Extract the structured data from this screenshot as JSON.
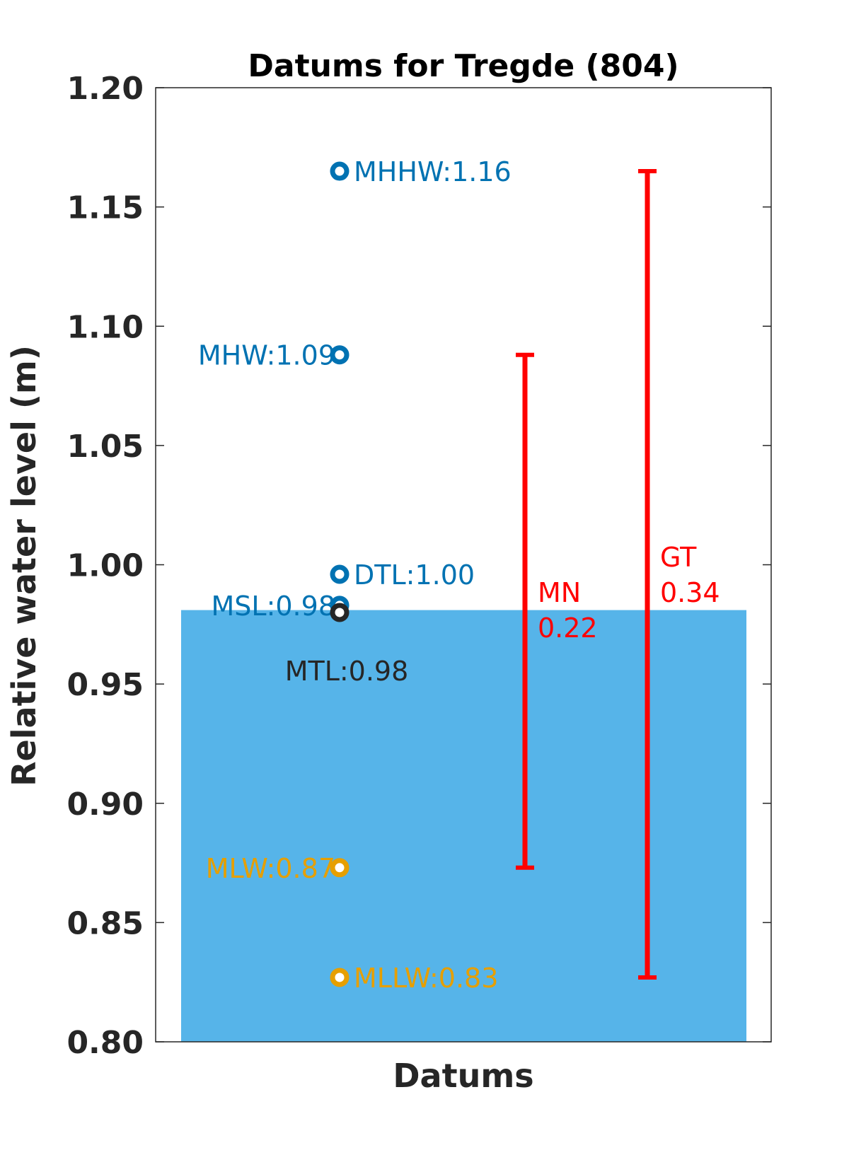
{
  "chart_data": {
    "type": "scatter",
    "title": "Datums for Tregde (804)",
    "xlabel": "Datums",
    "ylabel": "Relative water level (m)",
    "ylim": [
      0.8,
      1.2
    ],
    "yticks": [
      0.8,
      0.85,
      0.9,
      0.95,
      1.0,
      1.05,
      1.1,
      1.15,
      1.2
    ],
    "ytick_labels": [
      "0.80",
      "0.85",
      "0.90",
      "0.95",
      "1.00",
      "1.05",
      "1.10",
      "1.15",
      "1.20"
    ],
    "background_bar": {
      "value": 0.981,
      "color": "#56B4E9"
    },
    "points": [
      {
        "name": "MHHW",
        "label": "MHHW:1.16",
        "value": 1.165,
        "color": "#0072B2",
        "label_side": "right"
      },
      {
        "name": "MHW",
        "label": "MHW:1.09",
        "value": 1.088,
        "color": "#0072B2",
        "label_side": "left"
      },
      {
        "name": "DTL",
        "label": "DTL:1.00",
        "value": 0.996,
        "color": "#0072B2",
        "label_side": "right"
      },
      {
        "name": "MSL",
        "label": "MSL:0.98",
        "value": 0.983,
        "color": "#0072B2",
        "label_side": "left"
      },
      {
        "name": "MTL",
        "label": "MTL:0.98",
        "value": 0.98,
        "color": "#262626",
        "label_side": "below"
      },
      {
        "name": "MLW",
        "label": "MLW:0.87",
        "value": 0.873,
        "color": "#E69F00",
        "label_side": "left"
      },
      {
        "name": "MLLW",
        "label": "MLLW:0.83",
        "value": 0.827,
        "color": "#E69F00",
        "label_side": "right"
      }
    ],
    "ranges": [
      {
        "name": "MN",
        "label_line1": "MN",
        "label_line2": "0.22",
        "low": 0.873,
        "high": 1.088,
        "color": "#FF0000"
      },
      {
        "name": "GT",
        "label_line1": "GT",
        "label_line2": "0.34",
        "low": 0.827,
        "high": 1.165,
        "color": "#FF0000"
      }
    ]
  }
}
